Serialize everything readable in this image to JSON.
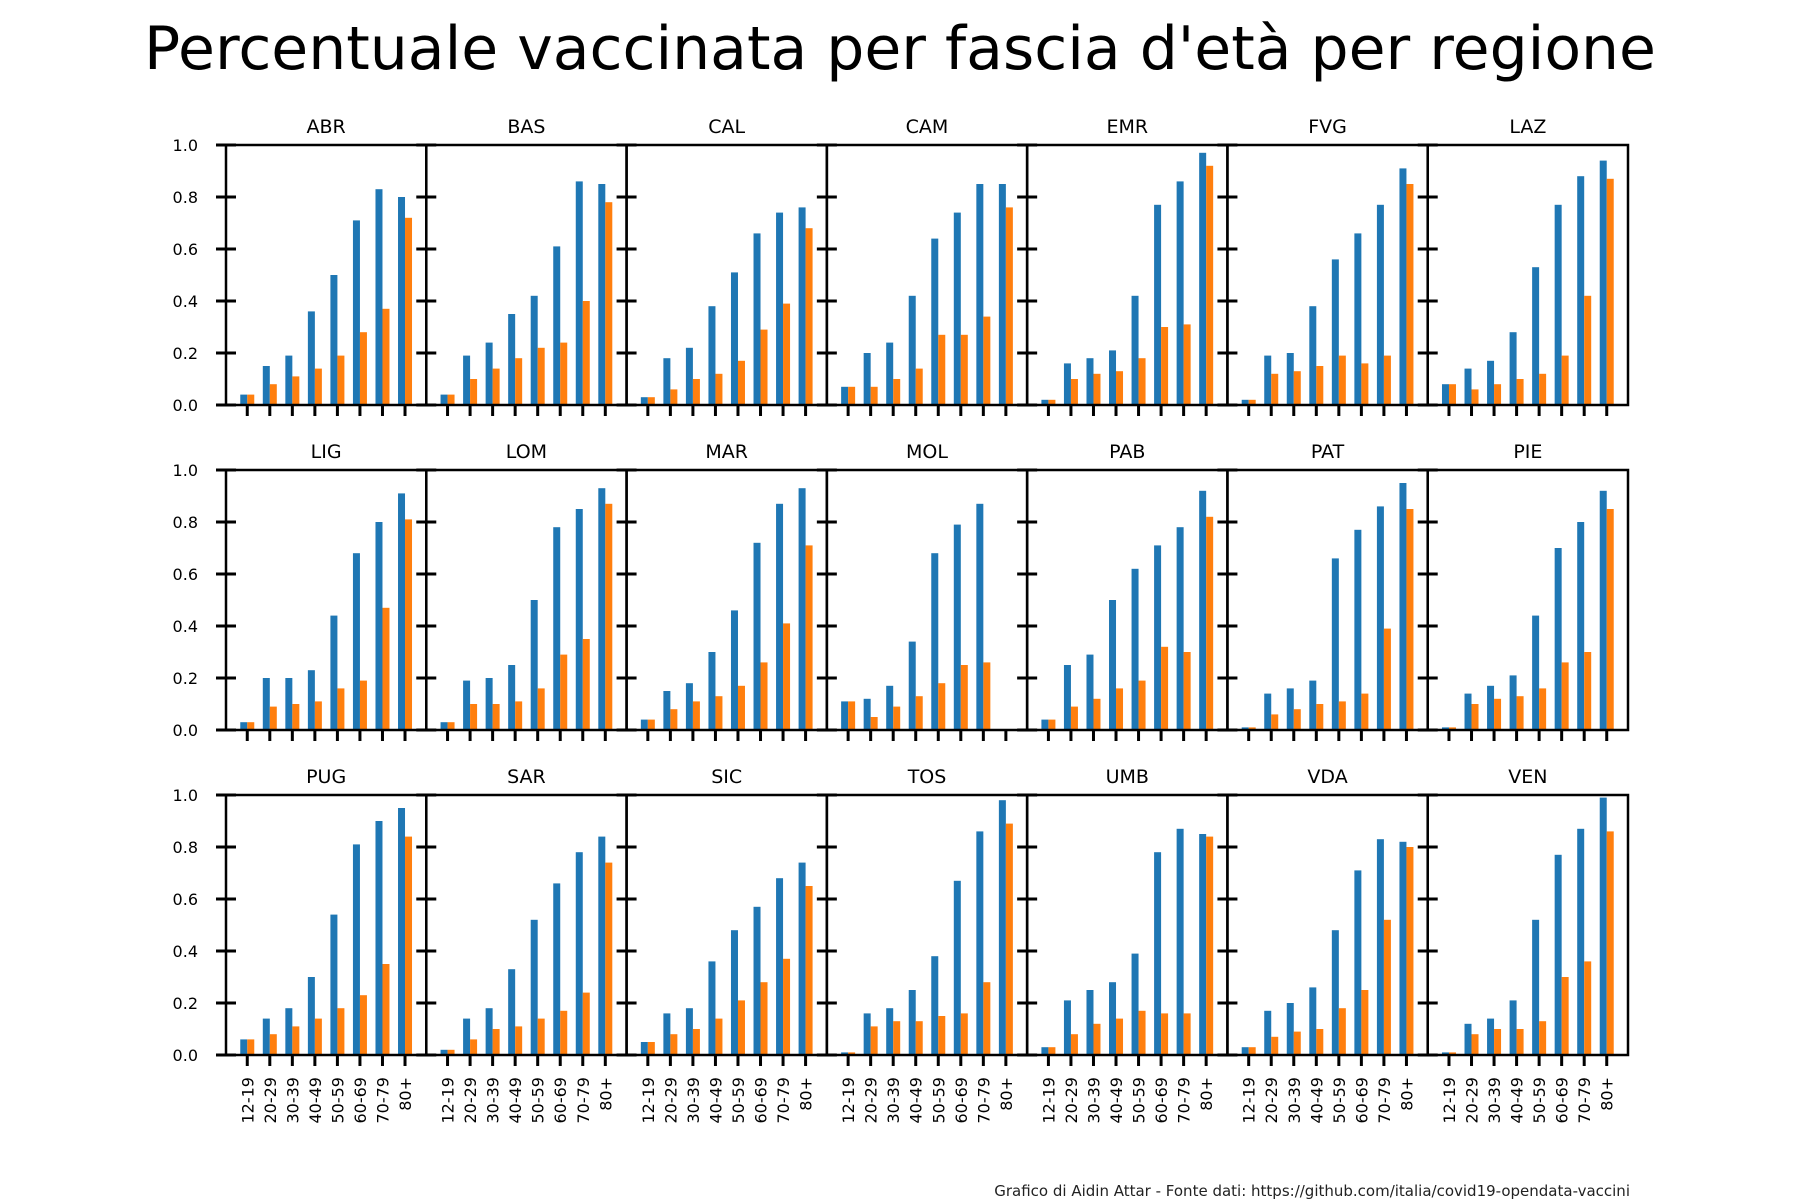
{
  "page": {
    "title": "Percentuale vaccinata per fascia d'età per regione",
    "footnote": "Grafico di Aidin Attar - Fonte dati: https://github.com/italia/covid19-opendata-vaccini"
  },
  "chart_data": {
    "type": "bar",
    "layout": "small-multiples 3x7",
    "categories": [
      "12-19",
      "20-29",
      "30-39",
      "40-49",
      "50-59",
      "60-69",
      "70-79",
      "80+"
    ],
    "ylim": [
      0,
      1.0
    ],
    "yticks": [
      "0.0",
      "0.2",
      "0.4",
      "0.6",
      "0.8",
      "1.0"
    ],
    "series_colors": [
      "#1f77b4",
      "#ff7f0e"
    ],
    "grid": false,
    "panels": [
      {
        "title": "ABR",
        "series": [
          [
            0.04,
            0.15,
            0.19,
            0.36,
            0.5,
            0.71,
            0.83,
            0.8
          ],
          [
            0.04,
            0.08,
            0.11,
            0.14,
            0.19,
            0.28,
            0.37,
            0.72
          ]
        ]
      },
      {
        "title": "BAS",
        "series": [
          [
            0.04,
            0.19,
            0.24,
            0.35,
            0.42,
            0.61,
            0.86,
            0.85
          ],
          [
            0.04,
            0.1,
            0.14,
            0.18,
            0.22,
            0.24,
            0.4,
            0.78
          ]
        ]
      },
      {
        "title": "CAL",
        "series": [
          [
            0.03,
            0.18,
            0.22,
            0.38,
            0.51,
            0.66,
            0.74,
            0.76
          ],
          [
            0.03,
            0.06,
            0.1,
            0.12,
            0.17,
            0.29,
            0.39,
            0.68
          ]
        ]
      },
      {
        "title": "CAM",
        "series": [
          [
            0.07,
            0.2,
            0.24,
            0.42,
            0.64,
            0.74,
            0.85,
            0.85
          ],
          [
            0.07,
            0.07,
            0.1,
            0.14,
            0.27,
            0.27,
            0.34,
            0.76
          ]
        ]
      },
      {
        "title": "EMR",
        "series": [
          [
            0.02,
            0.16,
            0.18,
            0.21,
            0.42,
            0.77,
            0.86,
            0.97
          ],
          [
            0.02,
            0.1,
            0.12,
            0.13,
            0.18,
            0.3,
            0.31,
            0.92
          ]
        ]
      },
      {
        "title": "FVG",
        "series": [
          [
            0.02,
            0.19,
            0.2,
            0.38,
            0.56,
            0.66,
            0.77,
            0.91
          ],
          [
            0.02,
            0.12,
            0.13,
            0.15,
            0.19,
            0.16,
            0.19,
            0.85
          ]
        ]
      },
      {
        "title": "LAZ",
        "series": [
          [
            0.08,
            0.14,
            0.17,
            0.28,
            0.53,
            0.77,
            0.88,
            0.94
          ],
          [
            0.08,
            0.06,
            0.08,
            0.1,
            0.12,
            0.19,
            0.42,
            0.87
          ]
        ]
      },
      {
        "title": "LIG",
        "series": [
          [
            0.03,
            0.2,
            0.2,
            0.23,
            0.44,
            0.68,
            0.8,
            0.91
          ],
          [
            0.03,
            0.09,
            0.1,
            0.11,
            0.16,
            0.19,
            0.47,
            0.81
          ]
        ]
      },
      {
        "title": "LOM",
        "series": [
          [
            0.03,
            0.19,
            0.2,
            0.25,
            0.5,
            0.78,
            0.85,
            0.93
          ],
          [
            0.03,
            0.1,
            0.1,
            0.11,
            0.16,
            0.29,
            0.35,
            0.87
          ]
        ]
      },
      {
        "title": "MAR",
        "series": [
          [
            0.04,
            0.15,
            0.18,
            0.3,
            0.46,
            0.72,
            0.87,
            0.93
          ],
          [
            0.04,
            0.08,
            0.11,
            0.13,
            0.17,
            0.26,
            0.41,
            0.71
          ]
        ]
      },
      {
        "title": "MOL",
        "series": [
          [
            0.11,
            0.12,
            0.17,
            0.34,
            0.68,
            0.79,
            0.87,
            0
          ],
          [
            0.11,
            0.05,
            0.09,
            0.13,
            0.18,
            0.25,
            0.26,
            0
          ]
        ]
      },
      {
        "title": "PAB",
        "series": [
          [
            0.04,
            0.25,
            0.29,
            0.5,
            0.62,
            0.71,
            0.78,
            0.92
          ],
          [
            0.04,
            0.09,
            0.12,
            0.16,
            0.19,
            0.32,
            0.3,
            0.82
          ]
        ]
      },
      {
        "title": "PAT",
        "series": [
          [
            0.01,
            0.14,
            0.16,
            0.19,
            0.66,
            0.77,
            0.86,
            0.95
          ],
          [
            0.01,
            0.06,
            0.08,
            0.1,
            0.11,
            0.14,
            0.39,
            0.85
          ]
        ]
      },
      {
        "title": "PIE",
        "series": [
          [
            0.01,
            0.14,
            0.17,
            0.21,
            0.44,
            0.7,
            0.8,
            0.92
          ],
          [
            0.01,
            0.1,
            0.12,
            0.13,
            0.16,
            0.26,
            0.3,
            0.85
          ]
        ]
      },
      {
        "title": "PUG",
        "series": [
          [
            0.06,
            0.14,
            0.18,
            0.3,
            0.54,
            0.81,
            0.9,
            0.95
          ],
          [
            0.06,
            0.08,
            0.11,
            0.14,
            0.18,
            0.23,
            0.35,
            0.84
          ]
        ]
      },
      {
        "title": "SAR",
        "series": [
          [
            0.02,
            0.14,
            0.18,
            0.33,
            0.52,
            0.66,
            0.78,
            0.84
          ],
          [
            0.02,
            0.06,
            0.1,
            0.11,
            0.14,
            0.17,
            0.24,
            0.74
          ]
        ]
      },
      {
        "title": "SIC",
        "series": [
          [
            0.05,
            0.16,
            0.18,
            0.36,
            0.48,
            0.57,
            0.68,
            0.74
          ],
          [
            0.05,
            0.08,
            0.1,
            0.14,
            0.21,
            0.28,
            0.37,
            0.65
          ]
        ]
      },
      {
        "title": "TOS",
        "series": [
          [
            0.01,
            0.16,
            0.18,
            0.25,
            0.38,
            0.67,
            0.86,
            0.98
          ],
          [
            0.01,
            0.11,
            0.13,
            0.13,
            0.15,
            0.16,
            0.28,
            0.89
          ]
        ]
      },
      {
        "title": "UMB",
        "series": [
          [
            0.03,
            0.21,
            0.25,
            0.28,
            0.39,
            0.78,
            0.87,
            0.85
          ],
          [
            0.03,
            0.08,
            0.12,
            0.14,
            0.17,
            0.16,
            0.16,
            0.84
          ]
        ]
      },
      {
        "title": "VDA",
        "series": [
          [
            0.03,
            0.17,
            0.2,
            0.26,
            0.48,
            0.71,
            0.83,
            0.82
          ],
          [
            0.03,
            0.07,
            0.09,
            0.1,
            0.18,
            0.25,
            0.52,
            0.8
          ]
        ]
      },
      {
        "title": "VEN",
        "series": [
          [
            0.01,
            0.12,
            0.14,
            0.21,
            0.52,
            0.77,
            0.87,
            0.99
          ],
          [
            0.01,
            0.08,
            0.1,
            0.1,
            0.13,
            0.3,
            0.36,
            0.86
          ]
        ]
      }
    ]
  }
}
